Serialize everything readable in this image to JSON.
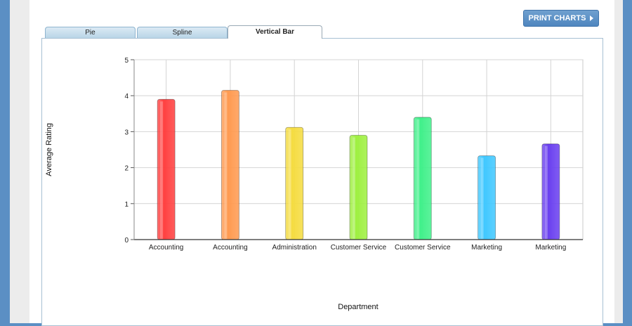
{
  "toolbar": {
    "print_label": "PRINT CHARTS"
  },
  "tabs": [
    {
      "label": "Pie",
      "active": false
    },
    {
      "label": "Spline",
      "active": false
    },
    {
      "label": "Vertical Bar",
      "active": true
    }
  ],
  "chart_data": {
    "type": "bar",
    "categories": [
      "Accounting",
      "Accounting",
      "Administration",
      "Customer Service",
      "Customer Service",
      "Marketing",
      "Marketing"
    ],
    "values": [
      3.9,
      4.15,
      3.12,
      2.9,
      3.4,
      2.33,
      2.66
    ],
    "colors": [
      "#ff4040",
      "#ff9a50",
      "#f5dc40",
      "#9ef040",
      "#40f08a",
      "#40c8ff",
      "#6a40f0"
    ],
    "xlabel": "Department",
    "ylabel": "Average Rating",
    "ylim": [
      0,
      5
    ],
    "yticks": [
      0,
      1,
      2,
      3,
      4,
      5
    ],
    "grid": true
  }
}
